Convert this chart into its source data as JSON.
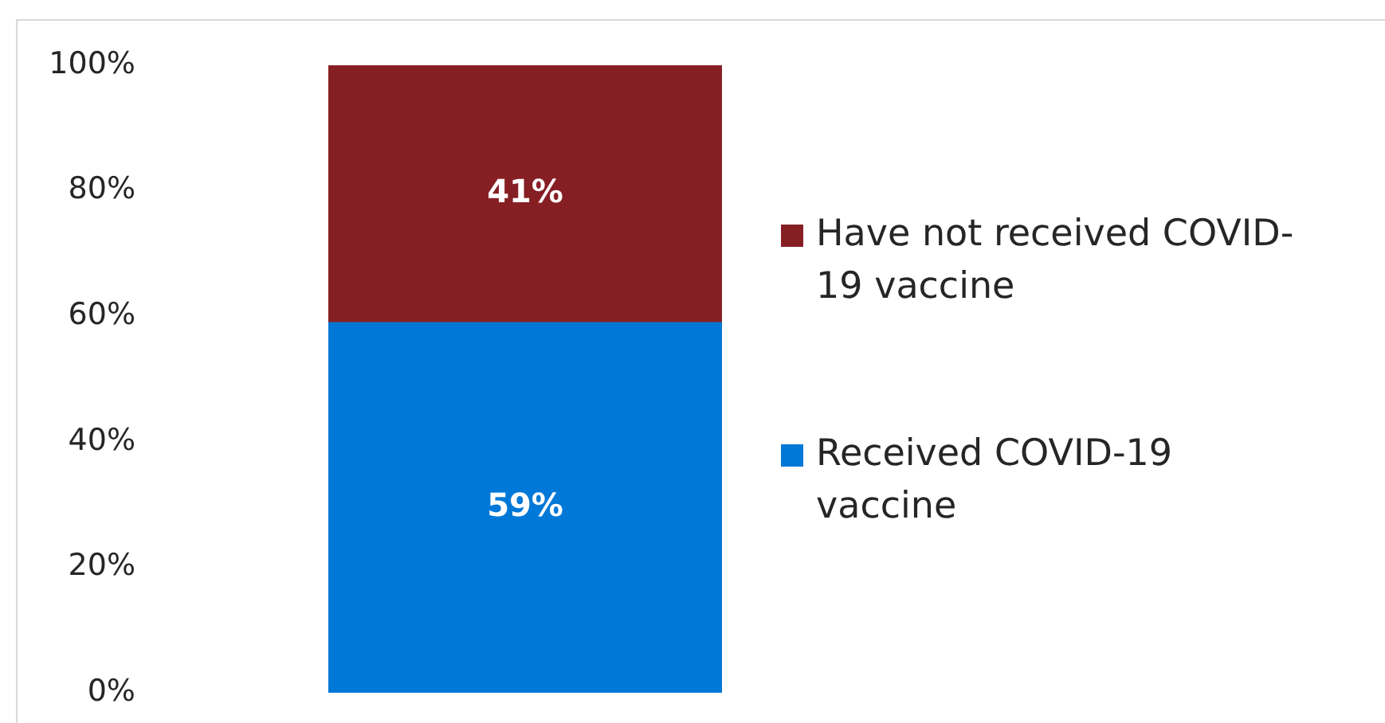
{
  "chart_data": {
    "type": "bar",
    "stacked": true,
    "categories": [
      null
    ],
    "series": [
      {
        "name": "Received COVID-19 vaccine",
        "color": "#0078d7",
        "values": [
          59
        ],
        "value_labels": [
          "59%"
        ]
      },
      {
        "name": "Have not received COVID-19 vaccine",
        "color": "#861f24",
        "values": [
          41
        ],
        "value_labels": [
          "41%"
        ]
      }
    ],
    "ylim": [
      0,
      100
    ],
    "yticks": [
      {
        "value": 0,
        "label": "0%"
      },
      {
        "value": 20,
        "label": "20%"
      },
      {
        "value": 40,
        "label": "40%"
      },
      {
        "value": 60,
        "label": "60%"
      },
      {
        "value": 80,
        "label": "80%"
      },
      {
        "value": 100,
        "label": "100%"
      }
    ],
    "grid": false,
    "legend": "right"
  }
}
